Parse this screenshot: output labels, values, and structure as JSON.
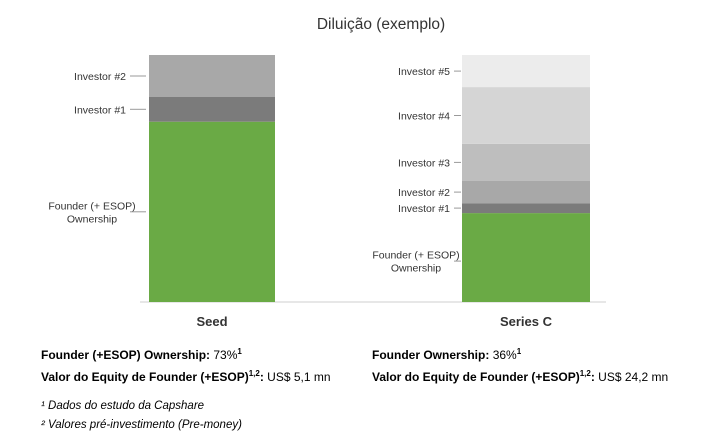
{
  "chart_data": {
    "type": "bar",
    "stacked": true,
    "title": "Diluição (exemplo)",
    "categories": [
      "Seed",
      "Series C"
    ],
    "ylim": [
      0,
      100
    ],
    "grid": false,
    "stacks": [
      {
        "category": "Seed",
        "segments": [
          {
            "label": "Founder (+ ESOP)\nOwnership",
            "value": 73,
            "color": "#6aaa45"
          },
          {
            "label": "Investor #1",
            "value": 10,
            "color": "#7b7b7b"
          },
          {
            "label": "Investor #2",
            "value": 17,
            "color": "#a8a8a8"
          }
        ]
      },
      {
        "category": "Series C",
        "segments": [
          {
            "label": "Founder (+ ESOP)\nOwnership",
            "value": 36,
            "color": "#6aaa45"
          },
          {
            "label": "Investor #1",
            "value": 4,
            "color": "#7b7b7b"
          },
          {
            "label": "Investor #2",
            "value": 9,
            "color": "#a8a8a8"
          },
          {
            "label": "Investor #3",
            "value": 15,
            "color": "#bebebe"
          },
          {
            "label": "Investor #4",
            "value": 23,
            "color": "#d5d5d5"
          },
          {
            "label": "Investor #5",
            "value": 13,
            "color": "#ececec"
          }
        ]
      }
    ]
  },
  "stats": {
    "seed": {
      "ownership_label": "Founder (+ESOP) Ownership:",
      "ownership_value": "73%",
      "ownership_sup": "1",
      "equity_label": "Valor do Equity de Founder (+ESOP)",
      "equity_sup": "1,2",
      "equity_colon": ":",
      "equity_value": "US$ 5,1 mn"
    },
    "series_c": {
      "ownership_label": "Founder Ownership:",
      "ownership_value": "36%",
      "ownership_sup": "1",
      "equity_label": "Valor do Equity de Founder (+ESOP)",
      "equity_sup": "1,2",
      "equity_colon": ":",
      "equity_value": "US$ 24,2 mn"
    }
  },
  "footnotes": {
    "note1_mark": "¹",
    "note1_text": "Dados do estudo da Capshare",
    "note2_mark": "²",
    "note2_text": "Valores pré-investimento (Pre-money)"
  }
}
